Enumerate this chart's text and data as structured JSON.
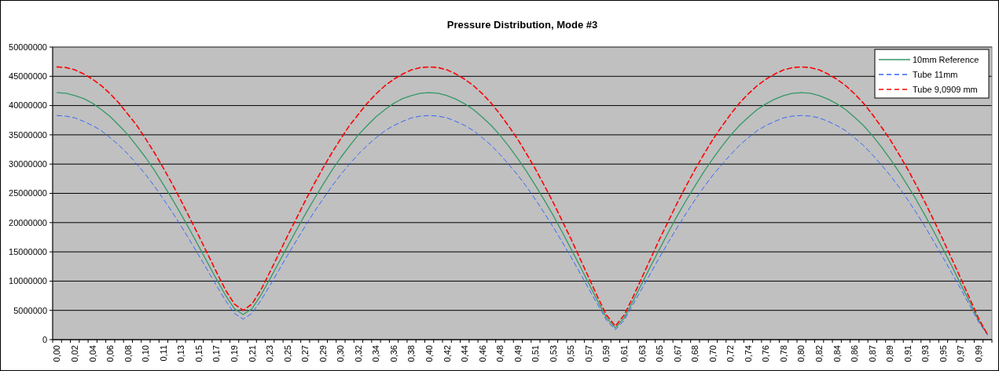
{
  "chart_data": {
    "type": "line",
    "title": "Pressure Distribution, Mode #3",
    "categories": [
      "0,00",
      null,
      "0,02",
      null,
      "0,04",
      null,
      "0,06",
      null,
      "0,08",
      null,
      "0,10",
      null,
      "0,11",
      null,
      "0,13",
      null,
      "0,15",
      null,
      "0,17",
      null,
      "0,19",
      null,
      "0,21",
      null,
      "0,23",
      null,
      "0,25",
      null,
      "0,27",
      null,
      "0,29",
      null,
      "0,30",
      null,
      "0,32",
      null,
      "0,34",
      null,
      "0,36",
      null,
      "0,38",
      null,
      "0,40",
      null,
      "0,42",
      null,
      "0,44",
      null,
      "0,46",
      null,
      "0,48",
      null,
      "0,49",
      null,
      "0,51",
      null,
      "0,53",
      null,
      "0,55",
      null,
      "0,57",
      null,
      "0,59",
      null,
      "0,61",
      null,
      "0,63",
      null,
      "0,65",
      null,
      "0,67",
      null,
      "0,68",
      null,
      "0,70",
      null,
      "0,72",
      null,
      "0,74",
      null,
      "0,76",
      null,
      "0,78",
      null,
      "0,80",
      null,
      "0,82",
      null,
      "0,84",
      null,
      "0,86",
      null,
      "0,87",
      null,
      "0,89",
      null,
      "0,91",
      null,
      "0,93",
      null,
      "0,95",
      null,
      "0,97",
      null,
      "0,99",
      null
    ],
    "series": [
      {
        "name": "10mm Reference",
        "color": "#339966",
        "line_style": "solid",
        "values": [
          42200000,
          42100000,
          41700000,
          41200000,
          40400000,
          39300000,
          38100000,
          36600000,
          35000000,
          33100000,
          31100000,
          28900000,
          26500000,
          24000000,
          21400000,
          18700000,
          15900000,
          13100000,
          10300000,
          7600000,
          5300000,
          4300000,
          5300000,
          7600000,
          10300000,
          13100000,
          15900000,
          18700000,
          21400000,
          24000000,
          26500000,
          28900000,
          31100000,
          33100000,
          35000000,
          36600000,
          38100000,
          39300000,
          40400000,
          41200000,
          41700000,
          42100000,
          42200000,
          42100000,
          41700000,
          41100000,
          40300000,
          39300000,
          38000000,
          36600000,
          34900000,
          33000000,
          30900000,
          28700000,
          26300000,
          23800000,
          21200000,
          18400000,
          15500000,
          12600000,
          9600000,
          6600000,
          3700000,
          2000000,
          3700000,
          6600000,
          9600000,
          12600000,
          15500000,
          18400000,
          21200000,
          23800000,
          26300000,
          28700000,
          30900000,
          33000000,
          34900000,
          36600000,
          38000000,
          39300000,
          40300000,
          41100000,
          41700000,
          42100000,
          42200000,
          42100000,
          41700000,
          41100000,
          40300000,
          39300000,
          38000000,
          36600000,
          34900000,
          33000000,
          30900000,
          28700000,
          26300000,
          23800000,
          21100000,
          18300000,
          15400000,
          12500000,
          9400000,
          6400000,
          3300000,
          900000
        ]
      },
      {
        "name": "Tube 11mm",
        "color": "#3366ff",
        "line_style": "dashed",
        "values": [
          38300000,
          38200000,
          37900000,
          37300000,
          36600000,
          35700000,
          34500000,
          33200000,
          31700000,
          30000000,
          28200000,
          26200000,
          24000000,
          21800000,
          19400000,
          16900000,
          14400000,
          11800000,
          9200000,
          6700000,
          4500000,
          3500000,
          4500000,
          6700000,
          9200000,
          11800000,
          14400000,
          16900000,
          19400000,
          21800000,
          24000000,
          26200000,
          28200000,
          30000000,
          31700000,
          33200000,
          34500000,
          35700000,
          36600000,
          37300000,
          37900000,
          38200000,
          38300000,
          38200000,
          37900000,
          37300000,
          36600000,
          35700000,
          34500000,
          33200000,
          31600000,
          29900000,
          28100000,
          26100000,
          23900000,
          21600000,
          19200000,
          16700000,
          14100000,
          11400000,
          8700000,
          6000000,
          3300000,
          1700000,
          3300000,
          6000000,
          8700000,
          11400000,
          14100000,
          16700000,
          19200000,
          21600000,
          23900000,
          26100000,
          28100000,
          29900000,
          31600000,
          33200000,
          34500000,
          35700000,
          36600000,
          37300000,
          37900000,
          38200000,
          38300000,
          38200000,
          37900000,
          37300000,
          36600000,
          35700000,
          34500000,
          33200000,
          31600000,
          29900000,
          28100000,
          26100000,
          23900000,
          21600000,
          19200000,
          16600000,
          14000000,
          11300000,
          8600000,
          5800000,
          3000000,
          800000
        ]
      },
      {
        "name": "Tube 9,0909 mm",
        "color": "#ff0000",
        "line_style": "dashed",
        "values": [
          46600000,
          46500000,
          46100000,
          45400000,
          44500000,
          43400000,
          42000000,
          40400000,
          38500000,
          36600000,
          34300000,
          31900000,
          29300000,
          26600000,
          23700000,
          20700000,
          17700000,
          14600000,
          11500000,
          8500000,
          6100000,
          5000000,
          6100000,
          8500000,
          11500000,
          14600000,
          17700000,
          20700000,
          23700000,
          26600000,
          29300000,
          31900000,
          34300000,
          36600000,
          38500000,
          40400000,
          42000000,
          43400000,
          44500000,
          45400000,
          46100000,
          46500000,
          46600000,
          46500000,
          46100000,
          45400000,
          44500000,
          43400000,
          42000000,
          40400000,
          38500000,
          36400000,
          34200000,
          31700000,
          29100000,
          26300000,
          23400000,
          20300000,
          17200000,
          13900000,
          10600000,
          7300000,
          4200000,
          2300000,
          4200000,
          7300000,
          10600000,
          13900000,
          17200000,
          20300000,
          23400000,
          26300000,
          29100000,
          31700000,
          34200000,
          36400000,
          38500000,
          40400000,
          42000000,
          43400000,
          44500000,
          45400000,
          46100000,
          46500000,
          46600000,
          46500000,
          46100000,
          45400000,
          44500000,
          43400000,
          42000000,
          40400000,
          38500000,
          36400000,
          34200000,
          31700000,
          29100000,
          26300000,
          23300000,
          20200000,
          17000000,
          13700000,
          10400000,
          7000000,
          3600000,
          900000
        ]
      }
    ],
    "ylim": [
      0,
      50000000
    ],
    "yticks": [
      0,
      5000000,
      10000000,
      15000000,
      20000000,
      25000000,
      30000000,
      35000000,
      40000000,
      45000000,
      50000000
    ],
    "grid": "y",
    "legend": "top right"
  }
}
